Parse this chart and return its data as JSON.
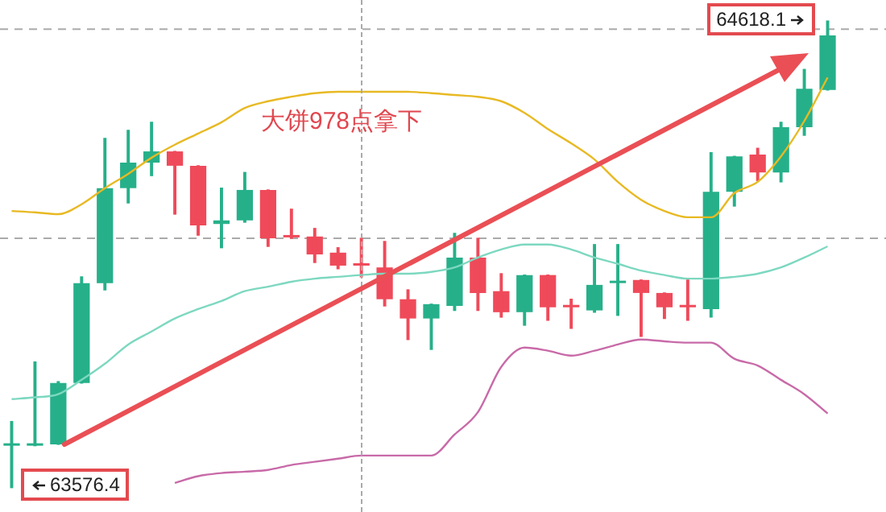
{
  "chart_data": {
    "type": "candlestick",
    "categories": [
      null,
      null,
      null,
      null,
      null,
      null,
      null,
      null,
      null,
      null,
      null,
      null,
      null,
      null,
      null,
      null,
      null,
      null,
      null,
      null,
      null,
      null,
      null,
      null,
      null,
      null,
      null,
      null,
      null,
      null,
      null,
      null,
      null,
      null,
      null,
      null
    ],
    "ohlc": [
      [
        63670,
        63724,
        63576.4,
        63673
      ],
      [
        63670,
        63857,
        63670,
        63673
      ],
      [
        63673,
        63813,
        63673,
        63810
      ],
      [
        63810,
        64047,
        63810,
        64033
      ],
      [
        64033,
        64356,
        64018,
        64245
      ],
      [
        64245,
        64374,
        64212,
        64302
      ],
      [
        64302,
        64392,
        64273,
        64327
      ],
      [
        64327,
        64327,
        64187,
        64295
      ],
      [
        64295,
        64295,
        64140,
        64162
      ],
      [
        64165,
        64245,
        64112,
        64173
      ],
      [
        64173,
        64280,
        64169,
        64241
      ],
      [
        64241,
        64241,
        64115,
        64133
      ],
      [
        64137,
        64198,
        64133,
        64135
      ],
      [
        64137,
        64155,
        64079,
        64097
      ],
      [
        64101,
        64112,
        64065,
        64072
      ],
      [
        64074,
        64133,
        64047,
        64072
      ],
      [
        64068,
        64126,
        63982,
        63997
      ],
      [
        63997,
        64018,
        63907,
        63954
      ],
      [
        63954,
        63986,
        63885,
        63986
      ],
      [
        63982,
        64144,
        63972,
        64090
      ],
      [
        64090,
        64133,
        63972,
        64011
      ],
      [
        64015,
        64054,
        63957,
        63968
      ],
      [
        63968,
        64051,
        63939,
        64051
      ],
      [
        64051,
        64051,
        63950,
        63979
      ],
      [
        63982,
        63997,
        63932,
        63979
      ],
      [
        63972,
        64119,
        63968,
        64029
      ],
      [
        64033,
        64119,
        63961,
        64036
      ],
      [
        64040,
        64040,
        63914,
        64011
      ],
      [
        64011,
        64011,
        63954,
        63979
      ],
      [
        63981,
        64040,
        63950,
        63979
      ],
      [
        63975,
        64324,
        63957,
        64237
      ],
      [
        64237,
        64316,
        64205,
        64316
      ],
      [
        64320,
        64334,
        64262,
        64280
      ],
      [
        64280,
        64392,
        64259,
        64381
      ],
      [
        64381,
        64510,
        64363,
        64467
      ],
      [
        64464,
        64618.1,
        64464,
        64586
      ]
    ],
    "colors": [
      "#26b08a",
      "#26b08a",
      "#26b08a",
      "#26b08a",
      "#26b08a",
      "#26b08a",
      "#26b08a",
      "#ef4a5a",
      "#ef4a5a",
      "#26b08a",
      "#26b08a",
      "#ef4a5a",
      "#ef4a5a",
      "#ef4a5a",
      "#ef4a5a",
      "#ef4a5a",
      "#ef4a5a",
      "#ef4a5a",
      "#26b08a",
      "#26b08a",
      "#ef4a5a",
      "#ef4a5a",
      "#26b08a",
      "#ef4a5a",
      "#ef4a5a",
      "#26b08a",
      "#26b08a",
      "#ef4a5a",
      "#ef4a5a",
      "#ef4a5a",
      "#26b08a",
      "#26b08a",
      "#ef4a5a",
      "#26b08a",
      "#26b08a",
      "#26b08a"
    ],
    "series": [
      {
        "type": "line",
        "color": "#e8b923",
        "values": [
          64194,
          64191,
          64187,
          64209,
          64245,
          64277,
          64313,
          64342,
          64367,
          64392,
          64424,
          64439,
          64449,
          64457,
          64460,
          64460,
          64460,
          64460,
          64457,
          64453,
          64449,
          64439,
          64413,
          64377,
          64345,
          64309,
          64259,
          64219,
          64194,
          64180,
          64180,
          64234,
          64259,
          64316,
          64395,
          64492
        ]
      },
      {
        "type": "line",
        "color": "#7dd8c0",
        "values": [
          63774,
          63778,
          63785,
          63817,
          63853,
          63896,
          63925,
          63954,
          63975,
          63993,
          64015,
          64025,
          64036,
          64043,
          64047,
          64051,
          64054,
          64054,
          64058,
          64068,
          64090,
          64108,
          64119,
          64119,
          64108,
          64090,
          64076,
          64061,
          64051,
          64043,
          64043,
          64047,
          64054,
          64068,
          64090,
          64115
        ]
      },
      {
        "type": "line",
        "color": "#c86aa8",
        "values": [
          null,
          null,
          null,
          null,
          null,
          null,
          null,
          63587,
          63602,
          63609,
          63612,
          63616,
          63627,
          63634,
          63641,
          63648,
          63648,
          63648,
          63648,
          63695,
          63745,
          63846,
          63889,
          63882,
          63871,
          63882,
          63896,
          63907,
          63903,
          63900,
          63900,
          63864,
          63849,
          63817,
          63785,
          63742
        ]
      }
    ],
    "ylim": [
      63522,
      64665
    ],
    "tick_labels": false,
    "ref_lines": [
      {
        "axis": "y",
        "value": 64600,
        "color": "#aaaaaa",
        "line_style": "dashed"
      },
      {
        "axis": "y",
        "value": 64133,
        "color": "#aaaaaa",
        "line_style": "dashed"
      }
    ],
    "annotations": [
      "大饼978点拿下",
      "64618.1",
      "63576.4"
    ]
  }
}
